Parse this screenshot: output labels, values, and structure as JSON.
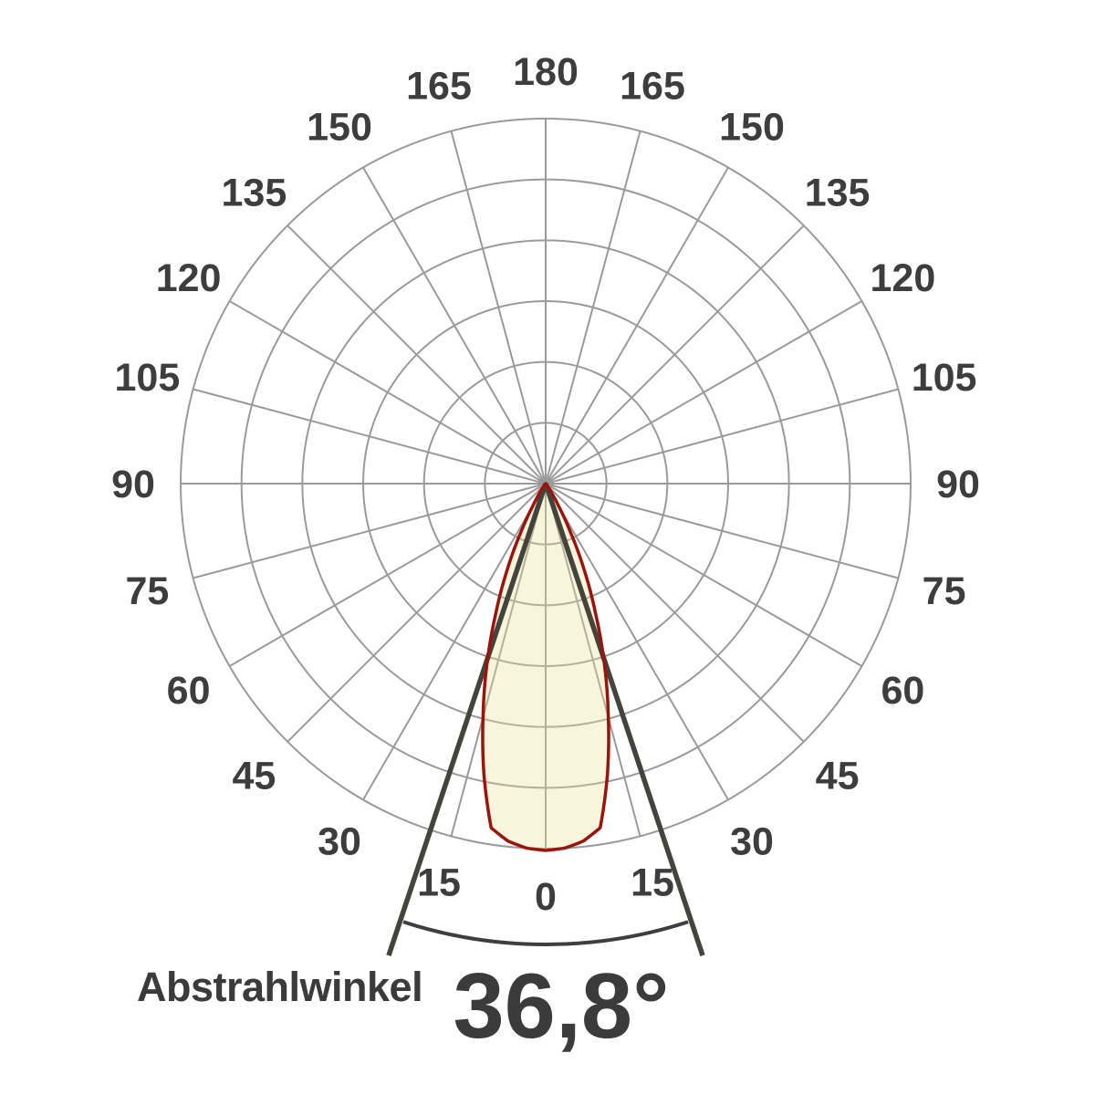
{
  "chart_data": {
    "type": "polar",
    "description": "Photometric light distribution curve (polar intensity diagram) with beam angle annotation",
    "grid": {
      "rings": 6,
      "angle_step_deg": 15,
      "angle_labels": [
        "0",
        "15",
        "30",
        "45",
        "60",
        "75",
        "90",
        "105",
        "120",
        "135",
        "150",
        "165",
        "180"
      ],
      "labels_mirrored_both_sides": true,
      "zero_direction": "down",
      "max_radius_value": 1.0
    },
    "beam_angle_deg": 36.8,
    "intensity_profile": {
      "note": "relative luminous intensity vs angle from beam axis (deg), symmetric",
      "samples": [
        [
          0,
          1.0
        ],
        [
          3,
          0.995
        ],
        [
          6,
          0.98
        ],
        [
          9,
          0.95
        ],
        [
          12,
          0.81
        ],
        [
          15,
          0.66
        ],
        [
          18.4,
          0.5
        ],
        [
          21,
          0.38
        ],
        [
          24,
          0.26
        ],
        [
          27,
          0.15
        ],
        [
          30,
          0.07
        ],
        [
          33,
          0.03
        ],
        [
          36,
          0.012
        ],
        [
          40,
          0.004
        ],
        [
          44,
          0.0
        ]
      ]
    }
  },
  "caption": {
    "label": "Abstrahlwinkel",
    "value": "36,8°"
  },
  "colors": {
    "background": "#ffffff",
    "grid": "#9a9a9a",
    "grid_inside_lobe": "#b4b09a",
    "lobe_fill": "#f8f5dc",
    "lobe_stroke": "#9a140e",
    "beam_lines": "#44433c",
    "beam_arc": "#3e3e3e",
    "tick_label": "#3d3d3d",
    "caption_text": "#3b3b3b"
  }
}
